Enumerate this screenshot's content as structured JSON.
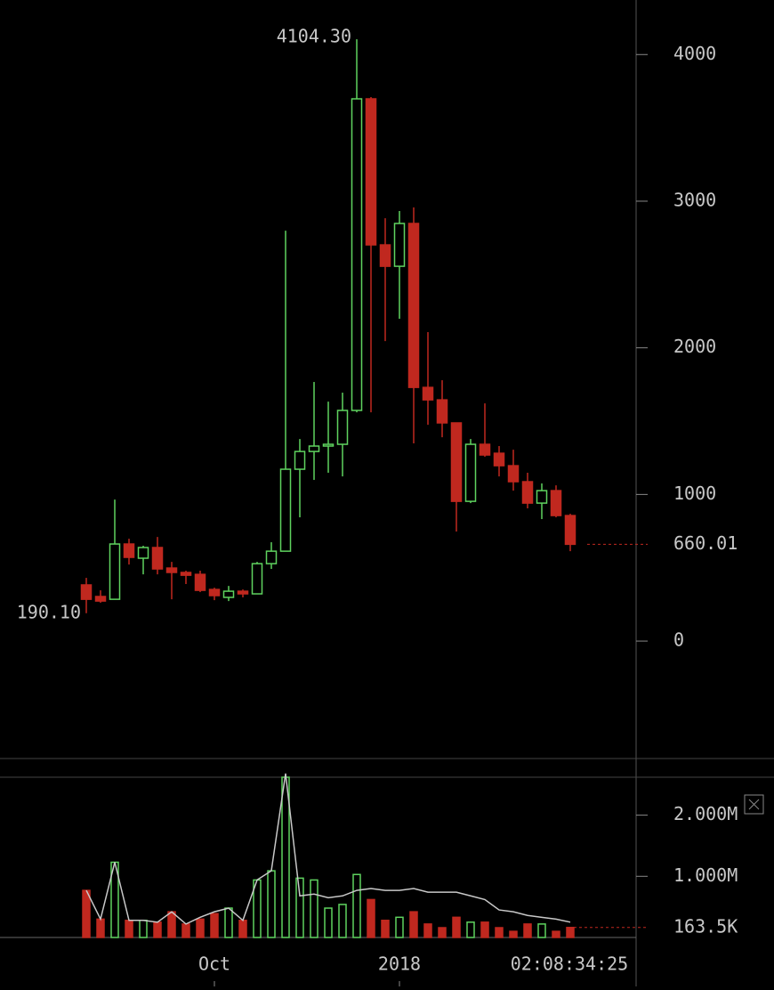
{
  "chart_data": {
    "type": "candlestick",
    "categories": [
      null,
      null,
      null,
      null,
      null,
      null,
      null,
      null,
      null,
      "Oct",
      null,
      null,
      null,
      null,
      null,
      null,
      null,
      null,
      null,
      null,
      null,
      null,
      "2018",
      null,
      null,
      null,
      null,
      null,
      null,
      null,
      null,
      null,
      null,
      null,
      null
    ],
    "open": [
      383,
      304,
      285,
      662,
      565,
      638,
      498,
      468,
      455,
      352,
      298,
      340,
      322,
      528,
      613,
      1172,
      1293,
      1330,
      1342,
      1573,
      3698,
      2702,
      2556,
      2848,
      1730,
      1645,
      1488,
      953,
      1342,
      1281,
      1196,
      1087,
      941,
      1026,
      856
    ],
    "high": [
      431,
      346,
      965,
      698,
      650,
      710,
      540,
      480,
      480,
      364,
      376,
      352,
      540,
      674,
      2799,
      1378,
      1767,
      1633,
      1694,
      4104.3,
      3710,
      2884,
      2933,
      2957,
      2107,
      1779,
      1488,
      1378,
      1621,
      1330,
      1305,
      1148,
      1075,
      1062,
      868
    ],
    "low": [
      190.1,
      261,
      285,
      522,
      455,
      455,
      285,
      389,
      334,
      279,
      273,
      298,
      322,
      492,
      613,
      844,
      1099,
      1148,
      1123,
      1560,
      1560,
      2046,
      2198,
      1348,
      1475,
      1390,
      747,
      941,
      1257,
      1123,
      1026,
      905,
      832,
      844,
      613
    ],
    "close": [
      285,
      273,
      662,
      571,
      638,
      492,
      468,
      449,
      346,
      310,
      340,
      322,
      528,
      613,
      1172,
      1293,
      1330,
      1342,
      1573,
      3698,
      2702,
      2556,
      2848,
      1730,
      1645,
      1488,
      953,
      1342,
      1269,
      1196,
      1087,
      941,
      1026,
      856,
      660.01
    ],
    "volume": [
      770000,
      300000,
      1230000,
      280000,
      280000,
      250000,
      420000,
      220000,
      300000,
      390000,
      480000,
      280000,
      940000,
      1090000,
      2620000,
      970000,
      940000,
      480000,
      540000,
      1030000,
      620000,
      280000,
      330000,
      420000,
      220000,
      160000,
      330000,
      250000,
      250000,
      160000,
      100000,
      220000,
      220000,
      100000,
      163500
    ],
    "volume_ma": [
      770000,
      300000,
      1230000,
      280000,
      280000,
      250000,
      420000,
      220000,
      330000,
      420000,
      480000,
      280000,
      940000,
      1090000,
      2680000,
      680000,
      710000,
      650000,
      680000,
      770000,
      800000,
      770000,
      770000,
      800000,
      740000,
      740000,
      740000,
      680000,
      620000,
      450000,
      420000,
      360000,
      330000,
      300000,
      250000
    ],
    "up_color": "#5fd35f",
    "down_color": "#c0281f",
    "ma_color": "#c8c8c8",
    "ylim": [
      -801,
      4372
    ],
    "yticks": [
      0,
      1000,
      2000,
      3000,
      4000
    ],
    "high_label": {
      "value": 4104.3,
      "label": "4104.30"
    },
    "low_label": {
      "value": 190.1,
      "label": "190.10"
    },
    "volume_ylim": [
      0,
      2620000
    ],
    "volume_yticks": [
      {
        "value": 1000000,
        "label": "1.000M"
      },
      {
        "value": 2000000,
        "label": "2.000M"
      }
    ],
    "last_volume": {
      "value": 163500,
      "label": "163.5K"
    },
    "countdown": "02:08:34:25"
  }
}
